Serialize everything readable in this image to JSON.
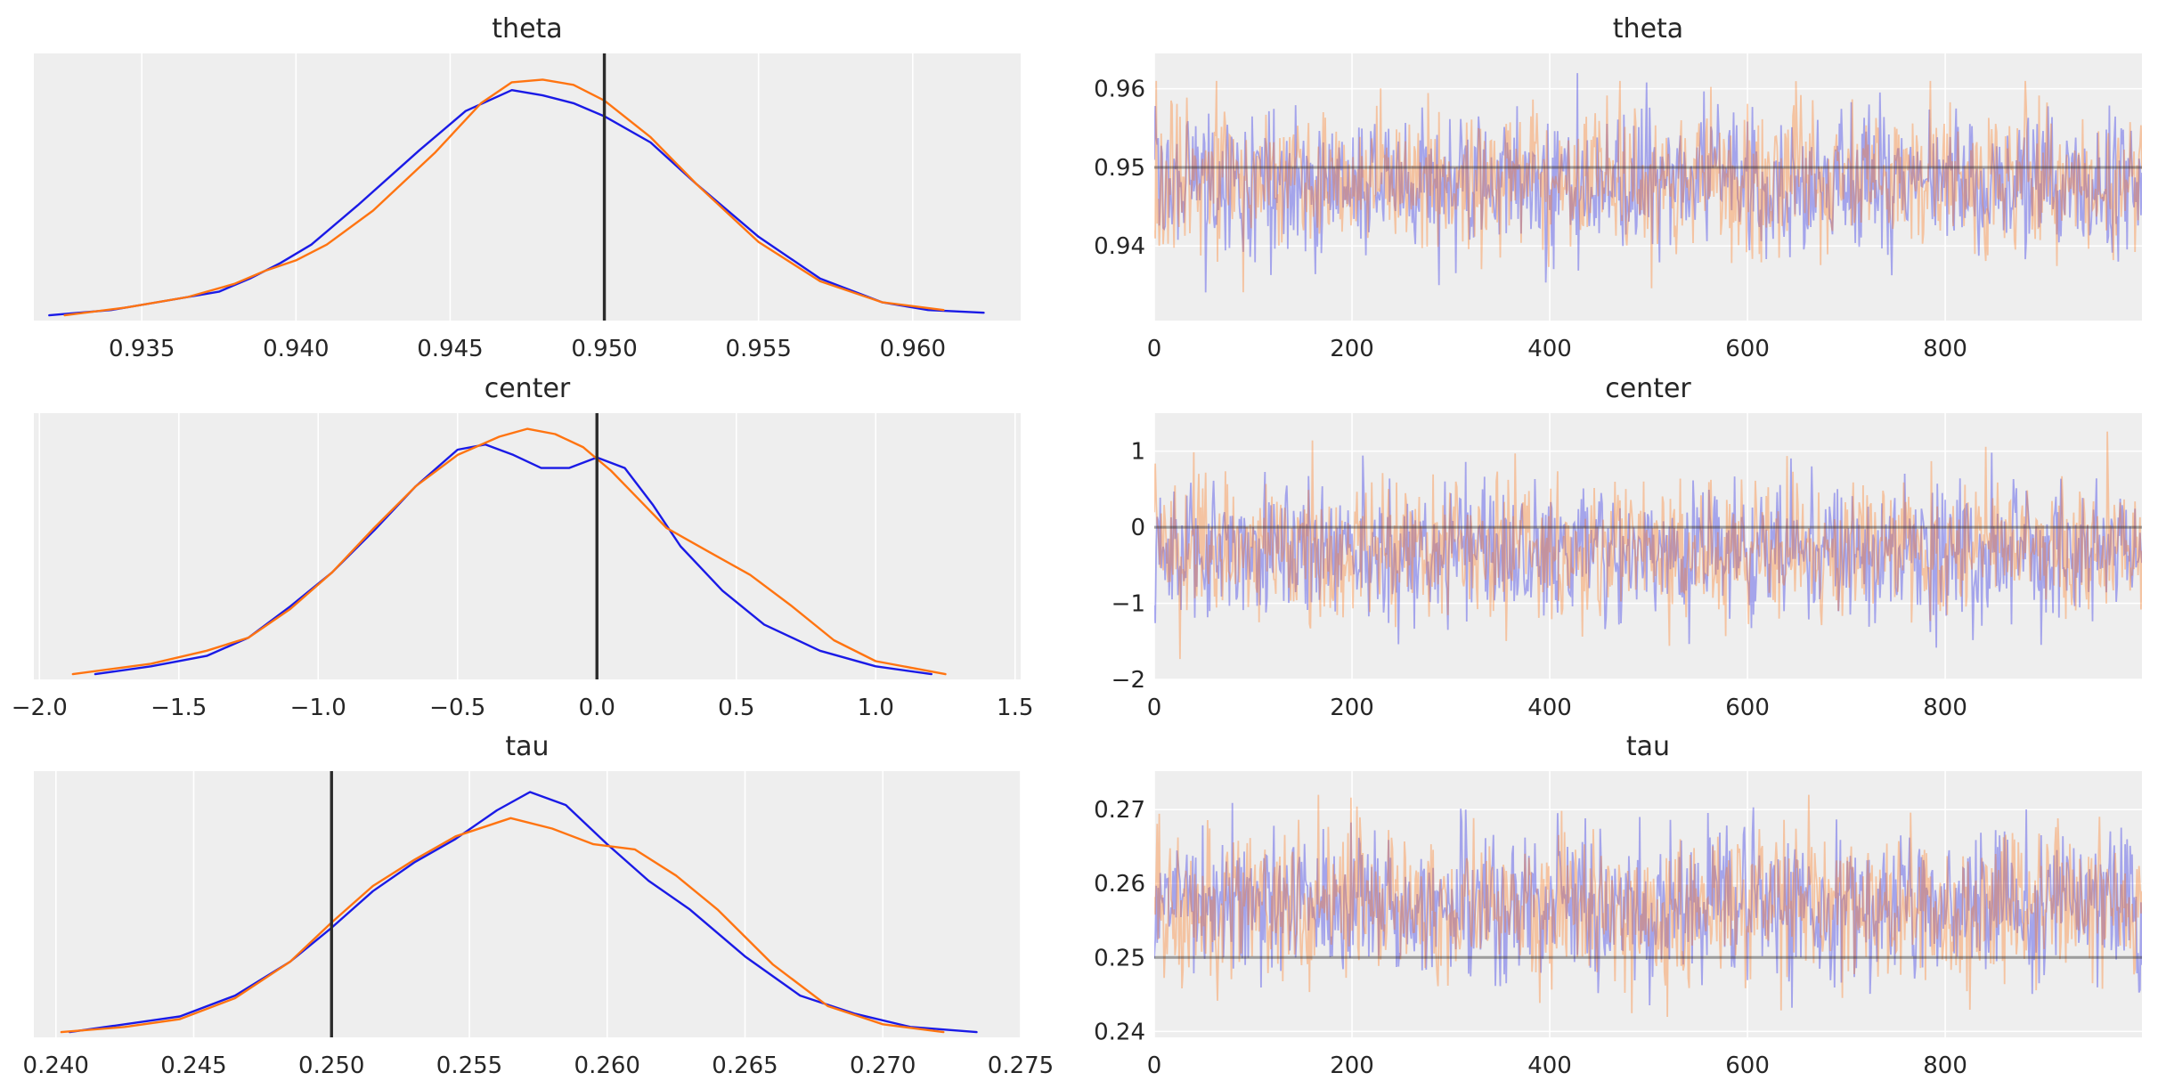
{
  "colors": {
    "chain_0": "#1a1ae6",
    "chain_1": "#ff7411",
    "ref_line": "#2b2b2b",
    "panel_bg": "#eeeeee",
    "grid": "#ffffff"
  },
  "chart_data": [
    {
      "type": "line",
      "kind": "density",
      "title": "theta",
      "xlim": [
        0.9315,
        0.9635
      ],
      "xticks": [
        0.935,
        0.94,
        0.945,
        0.95,
        0.955,
        0.96
      ],
      "xtick_labels": [
        "0.935",
        "0.940",
        "0.945",
        "0.950",
        "0.955",
        "0.960"
      ],
      "yticks": [],
      "ref_value": 0.95,
      "series": [
        {
          "x": [
            0.932,
            0.934,
            0.936,
            0.9375,
            0.9385,
            0.9395,
            0.9405,
            0.942,
            0.944,
            0.9455,
            0.947,
            0.948,
            0.949,
            0.95,
            0.9515,
            0.953,
            0.955,
            0.957,
            0.959,
            0.9605,
            0.9623
          ],
          "y": [
            0.0,
            0.02,
            0.06,
            0.09,
            0.14,
            0.2,
            0.27,
            0.42,
            0.63,
            0.78,
            0.86,
            0.84,
            0.81,
            0.76,
            0.66,
            0.5,
            0.3,
            0.14,
            0.05,
            0.02,
            0.01
          ]
        },
        {
          "x": [
            0.9325,
            0.9345,
            0.9365,
            0.938,
            0.939,
            0.94,
            0.941,
            0.9425,
            0.9445,
            0.946,
            0.947,
            0.948,
            0.949,
            0.95,
            0.9515,
            0.953,
            0.955,
            0.957,
            0.959,
            0.961
          ],
          "y": [
            0.0,
            0.03,
            0.07,
            0.12,
            0.17,
            0.21,
            0.27,
            0.4,
            0.62,
            0.81,
            0.89,
            0.9,
            0.88,
            0.82,
            0.68,
            0.5,
            0.28,
            0.13,
            0.05,
            0.02
          ]
        }
      ]
    },
    {
      "type": "line",
      "kind": "trace",
      "title": "theta",
      "xlim": [
        0,
        999
      ],
      "ylim": [
        0.9305,
        0.9645
      ],
      "xticks": [
        0,
        200,
        400,
        600,
        800
      ],
      "xtick_labels": [
        "0",
        "200",
        "400",
        "600",
        "800"
      ],
      "yticks": [
        0.94,
        0.95,
        0.96
      ],
      "ytick_labels": [
        "0.94",
        "0.95",
        "0.96"
      ],
      "ref_value": 0.95,
      "trace_mean": [
        0.948,
        0.9482
      ],
      "trace_sd": [
        0.0045,
        0.0045
      ],
      "trace_min": [
        0.932,
        0.934
      ],
      "trace_max": [
        0.962,
        0.961
      ]
    },
    {
      "type": "line",
      "kind": "density",
      "title": "center",
      "xlim": [
        -2.02,
        1.52
      ],
      "xticks": [
        -2.0,
        -1.5,
        -1.0,
        -0.5,
        0.0,
        0.5,
        1.0,
        1.5
      ],
      "xtick_labels": [
        "−2.0",
        "−1.5",
        "−1.0",
        "−0.5",
        "0.0",
        "0.5",
        "1.0",
        "1.5"
      ],
      "yticks": [],
      "ref_value": 0.0,
      "series": [
        {
          "x": [
            -1.8,
            -1.6,
            -1.4,
            -1.25,
            -1.1,
            -0.95,
            -0.8,
            -0.65,
            -0.5,
            -0.4,
            -0.3,
            -0.2,
            -0.1,
            0.0,
            0.1,
            0.2,
            0.3,
            0.45,
            0.6,
            0.8,
            1.0,
            1.2
          ],
          "y": [
            0.0,
            0.03,
            0.07,
            0.14,
            0.26,
            0.39,
            0.55,
            0.72,
            0.86,
            0.88,
            0.84,
            0.79,
            0.79,
            0.83,
            0.79,
            0.65,
            0.49,
            0.32,
            0.19,
            0.09,
            0.03,
            0.0
          ]
        },
        {
          "x": [
            -1.88,
            -1.6,
            -1.4,
            -1.25,
            -1.1,
            -0.95,
            -0.8,
            -0.65,
            -0.5,
            -0.35,
            -0.25,
            -0.15,
            -0.05,
            0.05,
            0.15,
            0.25,
            0.4,
            0.55,
            0.7,
            0.85,
            1.0,
            1.25
          ],
          "y": [
            0.0,
            0.04,
            0.09,
            0.14,
            0.25,
            0.39,
            0.56,
            0.72,
            0.84,
            0.91,
            0.94,
            0.92,
            0.87,
            0.78,
            0.67,
            0.56,
            0.47,
            0.38,
            0.26,
            0.13,
            0.05,
            0.0
          ]
        }
      ]
    },
    {
      "type": "line",
      "kind": "trace",
      "title": "center",
      "xlim": [
        0,
        999
      ],
      "ylim": [
        -2.0,
        1.5
      ],
      "xticks": [
        0,
        200,
        400,
        600,
        800
      ],
      "xtick_labels": [
        "0",
        "200",
        "400",
        "600",
        "800"
      ],
      "yticks": [
        -2,
        -1,
        0,
        1
      ],
      "ytick_labels": [
        "−2",
        "−1",
        "0",
        "1"
      ],
      "ref_value": 0.0,
      "trace_mean": [
        -0.3,
        -0.28
      ],
      "trace_sd": [
        0.45,
        0.45
      ],
      "trace_min": [
        -1.8,
        -1.9
      ],
      "trace_max": [
        1.3,
        1.4
      ]
    },
    {
      "type": "line",
      "kind": "density",
      "title": "tau",
      "xlim": [
        0.2392,
        0.275
      ],
      "xticks": [
        0.24,
        0.245,
        0.25,
        0.255,
        0.26,
        0.265,
        0.27,
        0.275
      ],
      "xtick_labels": [
        "0.240",
        "0.245",
        "0.250",
        "0.255",
        "0.260",
        "0.265",
        "0.270",
        "0.275"
      ],
      "yticks": [],
      "ref_value": 0.25,
      "series": [
        {
          "x": [
            0.2405,
            0.2425,
            0.2445,
            0.2465,
            0.2485,
            0.25,
            0.2515,
            0.253,
            0.2545,
            0.256,
            0.2572,
            0.2585,
            0.26,
            0.2615,
            0.263,
            0.265,
            0.267,
            0.269,
            0.271,
            0.2734
          ],
          "y": [
            0.0,
            0.03,
            0.06,
            0.14,
            0.27,
            0.4,
            0.54,
            0.65,
            0.74,
            0.85,
            0.92,
            0.87,
            0.72,
            0.58,
            0.47,
            0.29,
            0.14,
            0.07,
            0.02,
            0.0
          ]
        },
        {
          "x": [
            0.2402,
            0.2425,
            0.2445,
            0.2465,
            0.2485,
            0.25,
            0.2515,
            0.253,
            0.2545,
            0.2565,
            0.258,
            0.2595,
            0.261,
            0.2625,
            0.264,
            0.266,
            0.268,
            0.27,
            0.2722
          ],
          "y": [
            0.0,
            0.02,
            0.05,
            0.13,
            0.27,
            0.42,
            0.56,
            0.66,
            0.75,
            0.82,
            0.78,
            0.72,
            0.7,
            0.6,
            0.47,
            0.26,
            0.1,
            0.03,
            0.0
          ]
        }
      ]
    },
    {
      "type": "line",
      "kind": "trace",
      "title": "tau",
      "xlim": [
        0,
        999
      ],
      "ylim": [
        0.2392,
        0.2752
      ],
      "xticks": [
        0,
        200,
        400,
        600,
        800
      ],
      "xtick_labels": [
        "0",
        "200",
        "400",
        "600",
        "800"
      ],
      "yticks": [
        0.24,
        0.25,
        0.26,
        0.27
      ],
      "ytick_labels": [
        "0.24",
        "0.25",
        "0.26",
        "0.27"
      ],
      "ref_value": 0.25,
      "trace_mean": [
        0.257,
        0.2568
      ],
      "trace_sd": [
        0.005,
        0.005
      ],
      "trace_min": [
        0.241,
        0.241
      ],
      "trace_max": [
        0.273,
        0.272
      ]
    }
  ]
}
